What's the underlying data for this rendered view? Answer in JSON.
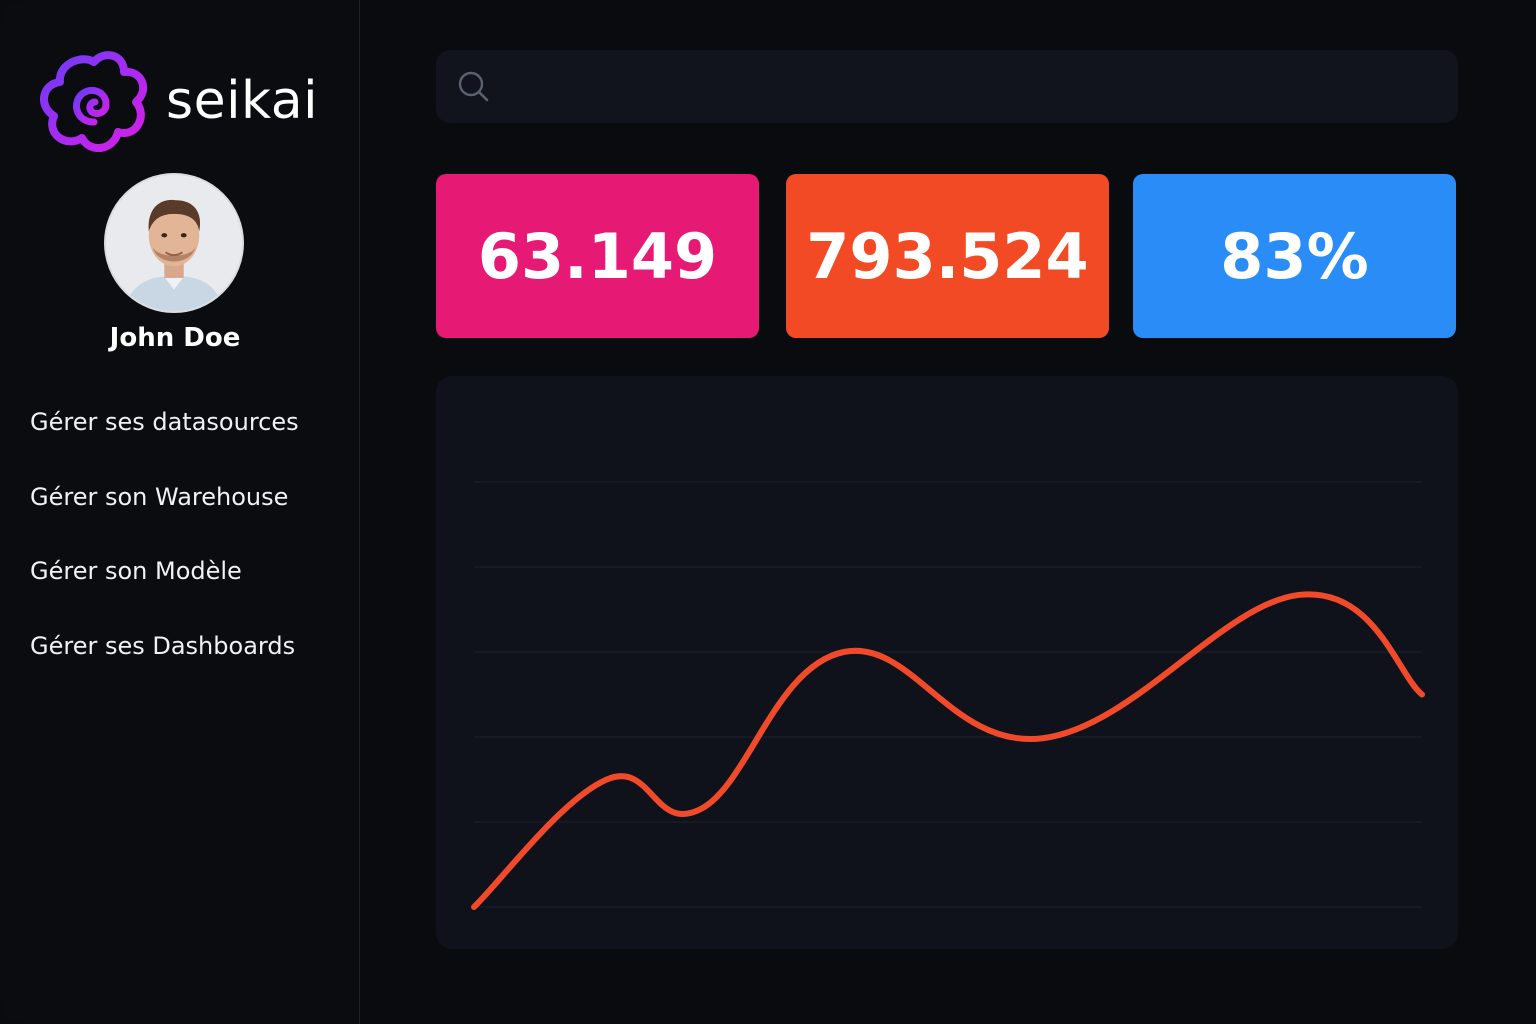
{
  "app": {
    "brand": "seikai",
    "brand_color": "#a32bf0"
  },
  "user": {
    "name": "John Doe"
  },
  "sidebar": {
    "items": [
      {
        "label": "Gérer ses datasources"
      },
      {
        "label": "Gérer son Warehouse"
      },
      {
        "label": "Gérer son Modèle"
      },
      {
        "label": "Gérer ses Dashboards"
      }
    ]
  },
  "search": {
    "value": "",
    "placeholder": ""
  },
  "stats": [
    {
      "value": "63.149",
      "color": "#e61a74"
    },
    {
      "value": "793.524",
      "color": "#f34a26"
    },
    {
      "value": "83%",
      "color": "#2a8df7"
    }
  ],
  "chart_data": {
    "type": "line",
    "title": "",
    "xlabel": "",
    "ylabel": "",
    "grid": true,
    "gridlines": 6,
    "line_color": "#f04a2b",
    "ylim": [
      0,
      7
    ],
    "series": [
      {
        "x": [
          0.0,
          0.14,
          0.24,
          0.39,
          0.6,
          0.87,
          1.0
        ],
        "values": [
          0.0,
          2.1,
          1.62,
          4.2,
          2.78,
          5.14,
          3.5
        ]
      }
    ]
  }
}
